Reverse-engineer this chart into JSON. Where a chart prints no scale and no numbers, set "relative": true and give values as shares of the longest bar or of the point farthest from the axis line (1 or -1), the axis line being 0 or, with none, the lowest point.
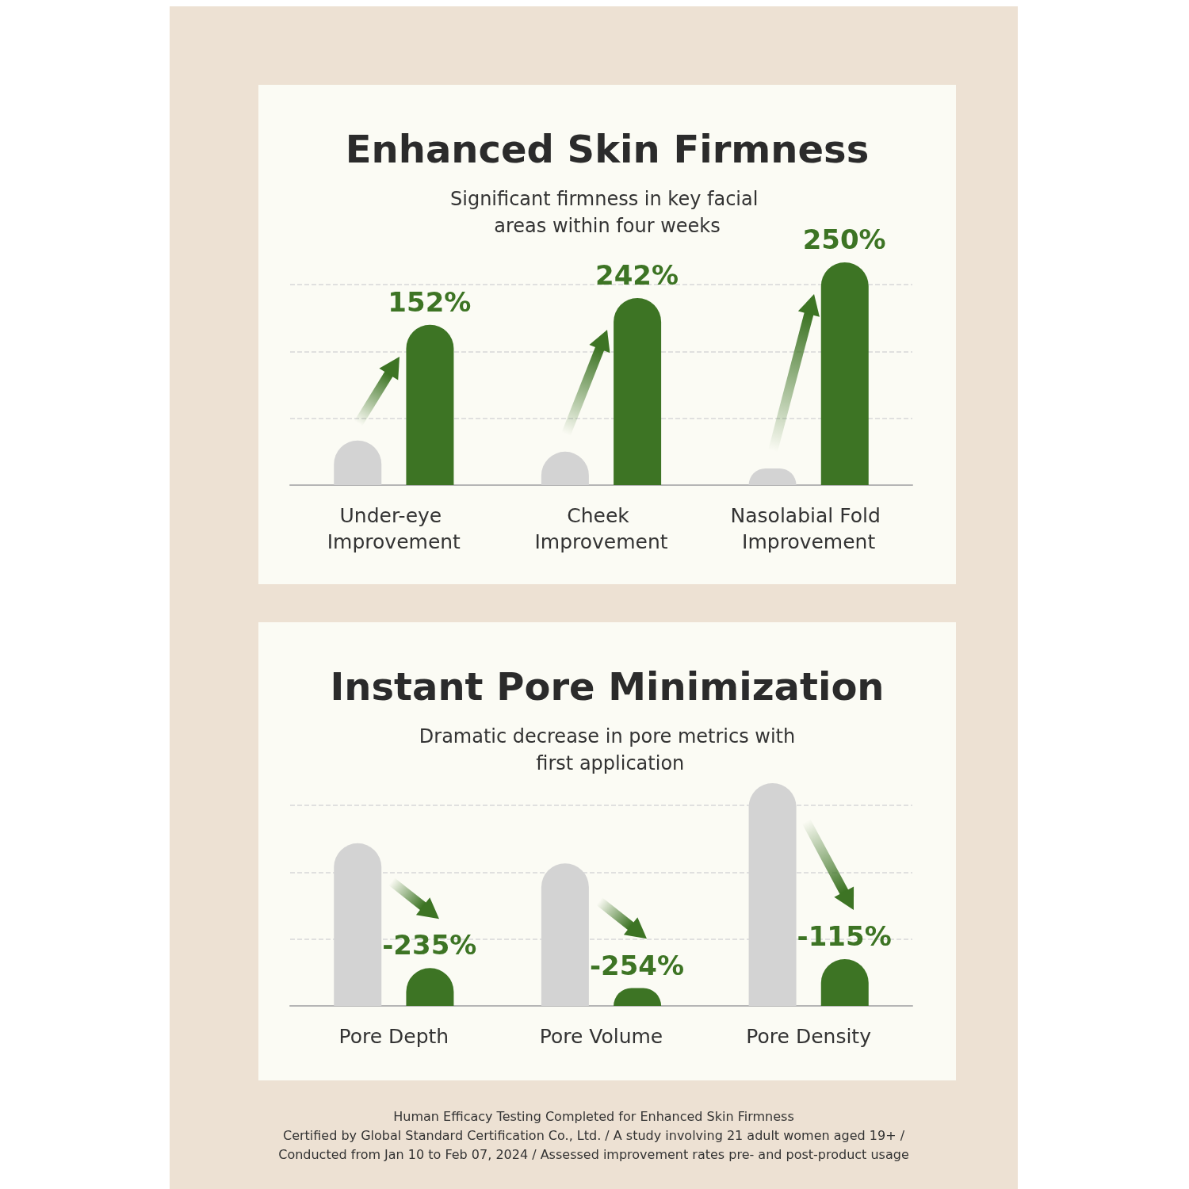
{
  "chart_data": [
    {
      "type": "bar",
      "title": "Enhanced Skin Firmness",
      "subtitle": "Significant firmness in key facial areas within four weeks",
      "categories": [
        "Under-eye Improvement",
        "Cheek Improvement",
        "Nasolabial Fold Improvement"
      ],
      "relative": true,
      "grid": "y",
      "series": [
        {
          "color": "#d3d3d3",
          "values": [
            0.2,
            0.15,
            0.075
          ]
        },
        {
          "color": "#3d7424",
          "values": [
            0.72,
            0.84,
            1
          ]
        }
      ],
      "annotations": [
        "152%",
        "242%",
        "250%"
      ]
    },
    {
      "type": "bar",
      "title": "Instant Pore Minimization",
      "subtitle": "Dramatic decrease in pore metrics with first application",
      "categories": [
        "Pore Depth",
        "Pore Volume",
        "Pore Density"
      ],
      "relative": true,
      "grid": "y",
      "series": [
        {
          "color": "#d3d3d3",
          "values": [
            0.73,
            0.64,
            1
          ]
        },
        {
          "color": "#3d7424",
          "values": [
            0.17,
            0.08,
            0.21
          ]
        }
      ],
      "annotations": [
        "-235%",
        "-254%",
        "-115%",
        "Human Efficacy Testing Completed for Enhanced Skin Firmness",
        "Certified by Global Standard Certification Co., Ltd. / A study involving 21 adult women aged 19+ /",
        "Conducted from Jan 10 to Feb 07, 2024 / Assessed improvement rates pre- and post-product usage"
      ]
    }
  ]
}
